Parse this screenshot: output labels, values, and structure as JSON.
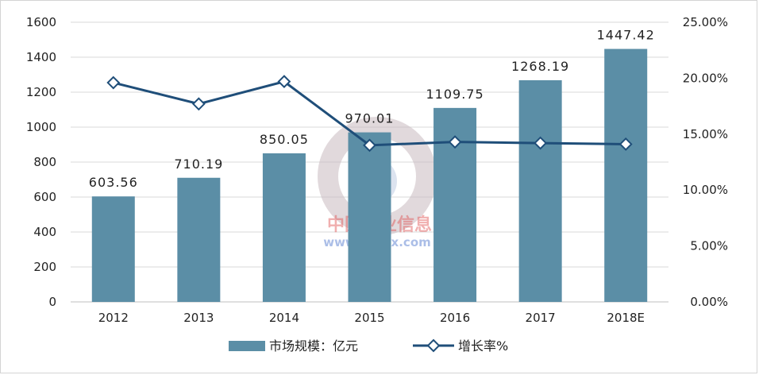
{
  "chart_data": {
    "type": "bar",
    "categories": [
      "2012",
      "2013",
      "2014",
      "2015",
      "2016",
      "2017",
      "2018E"
    ],
    "series": [
      {
        "name": "市场规模：亿元",
        "type": "bar",
        "axis": "left",
        "values": [
          603.56,
          710.19,
          850.05,
          970.01,
          1109.75,
          1268.19,
          1447.42
        ],
        "labels": [
          "603.56",
          "710.19",
          "850.05",
          "970.01",
          "1109.75",
          "1268.19",
          "1447.42"
        ]
      },
      {
        "name": "增长率%",
        "type": "line",
        "axis": "right",
        "values": [
          19.6,
          17.7,
          19.7,
          14.0,
          14.3,
          14.2,
          14.1
        ]
      }
    ],
    "y_left": {
      "ylim": [
        0,
        1600
      ],
      "ticks": [
        0,
        200,
        400,
        600,
        800,
        1000,
        1200,
        1400,
        1600
      ],
      "tick_labels": [
        "0",
        "200",
        "400",
        "600",
        "800",
        "1000",
        "1200",
        "1400",
        "1600"
      ]
    },
    "y_right": {
      "ylim": [
        0,
        25
      ],
      "ticks": [
        0,
        5,
        10,
        15,
        20,
        25
      ],
      "tick_labels": [
        "0.00%",
        "5.00%",
        "10.00%",
        "15.00%",
        "20.00%",
        "25.00%"
      ]
    },
    "legend_position": "bottom-center",
    "grid": true,
    "colors": {
      "bar": "#5b8ea6",
      "line": "#1f4e79",
      "grid": "#d9d9d9"
    }
  },
  "watermark": {
    "title": "中国产业信息",
    "url": "www.chyxx.com"
  }
}
